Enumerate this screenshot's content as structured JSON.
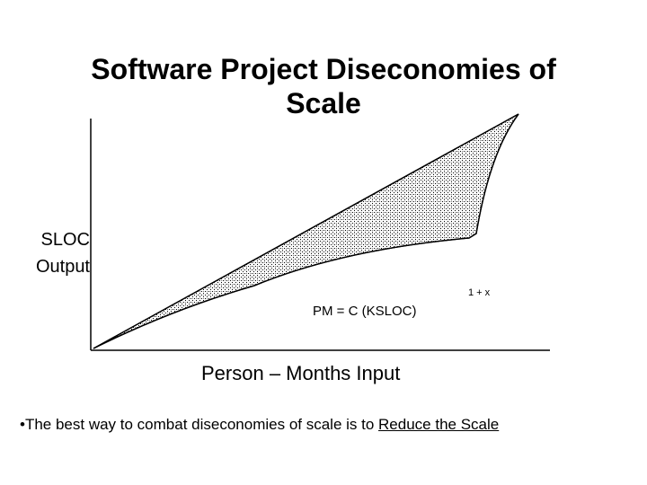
{
  "title": {
    "line1": "Software Project Diseconomies of",
    "line2": "Scale"
  },
  "axes": {
    "y_label_line1": "SLOC",
    "y_label_line2": "Output",
    "x_label": "Person – Months Input"
  },
  "formula": {
    "text": "PM =  C (KSLOC)",
    "exponent": "1 + x"
  },
  "note": {
    "text": "•The best way to combat diseconomies of scale is to ",
    "emphasis": "Reduce the Scale"
  },
  "colors": {
    "foreground": "#000000",
    "background": "#ffffff"
  }
}
